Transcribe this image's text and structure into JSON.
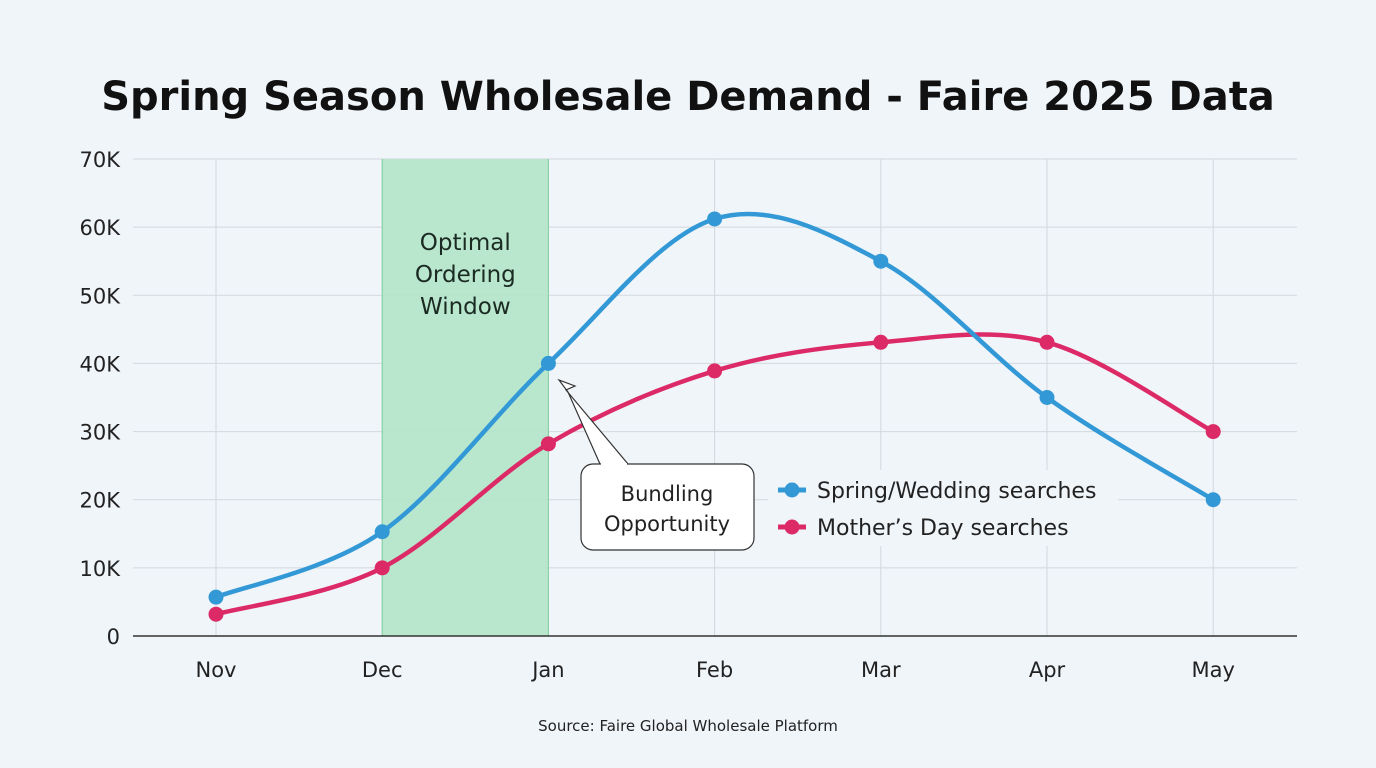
{
  "chart_data": {
    "type": "line",
    "title": "Spring Season Wholesale Demand - Faire 2025 Data",
    "categories": [
      "Nov",
      "Dec",
      "Jan",
      "Feb",
      "Mar",
      "Apr",
      "May"
    ],
    "ylim": [
      0,
      70000
    ],
    "yticks": [
      0,
      10000,
      20000,
      30000,
      40000,
      50000,
      60000,
      70000
    ],
    "ytick_labels": [
      "0",
      "10K",
      "20K",
      "30K",
      "40K",
      "50K",
      "60K",
      "70K"
    ],
    "grid": true,
    "series": [
      {
        "name": "Spring/Wedding searches",
        "color": "#3399d6",
        "values": [
          5700,
          15300,
          40000,
          61200,
          55000,
          35000,
          20000
        ]
      },
      {
        "name": "Mother’s Day searches",
        "color": "#dc2a67",
        "values": [
          3200,
          10000,
          28200,
          38900,
          43100,
          43100,
          30000
        ]
      }
    ],
    "shaded_region": {
      "from": "Dec",
      "to": "Jan",
      "label_lines": [
        "Optimal",
        "Ordering",
        "Window"
      ],
      "color": "#b3e6c9"
    },
    "annotation": {
      "lines": [
        "Bundling",
        "Opportunity"
      ],
      "points_to": {
        "category": "Jan",
        "value": 40000
      }
    },
    "legend_position": "center-right",
    "source": "Source: Faire Global Wholesale Platform"
  }
}
